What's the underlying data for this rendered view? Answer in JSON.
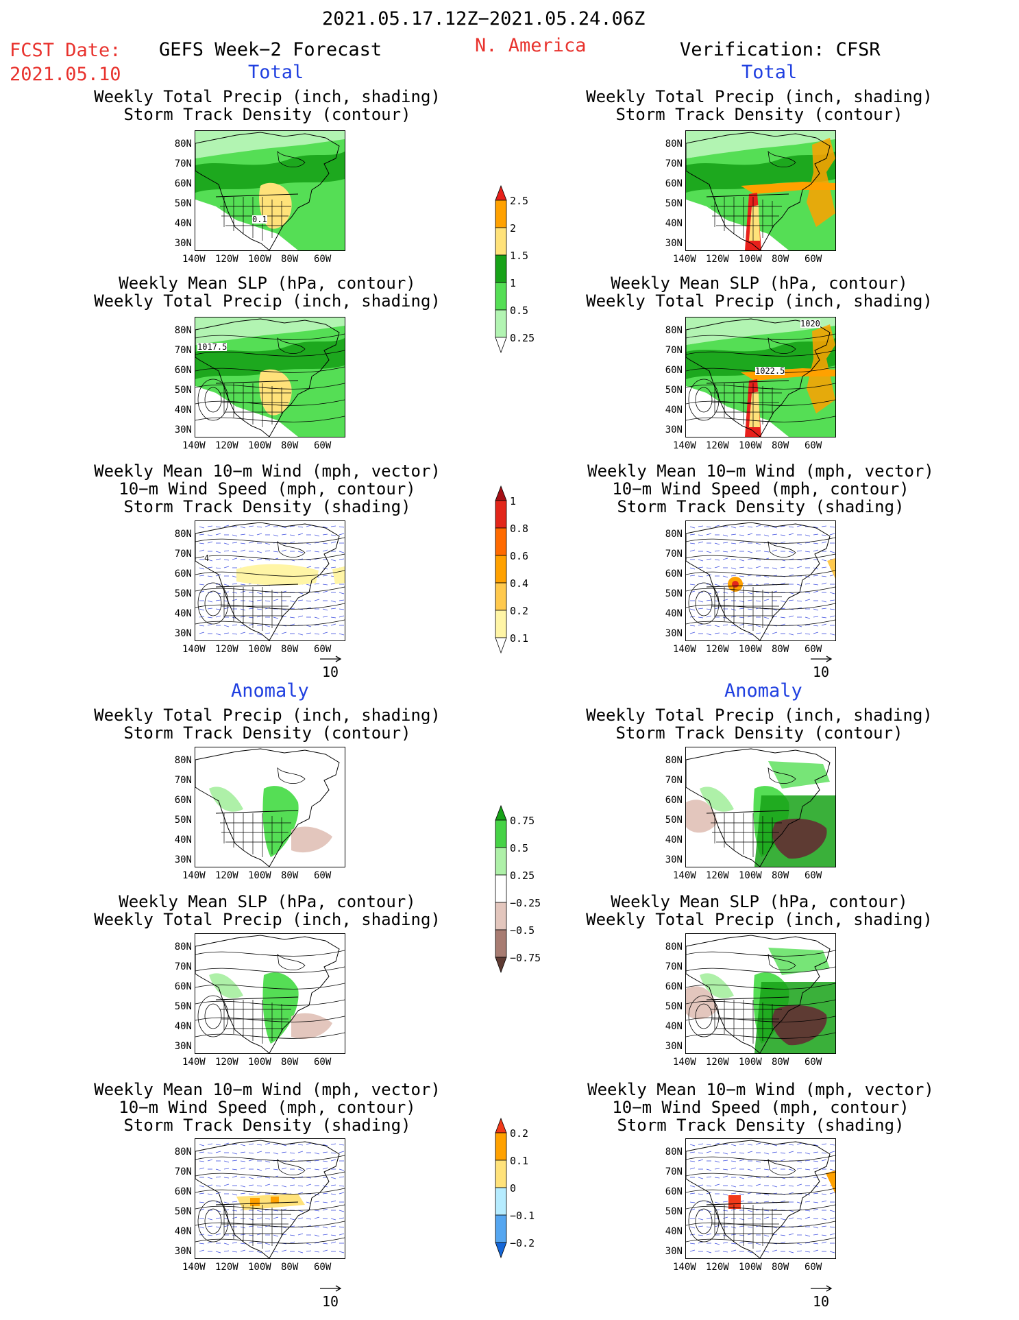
{
  "header": {
    "period": "2021.05.17.12Z−2021.05.24.06Z",
    "fcst_label": "FCST Date:",
    "fcst_date": "2021.05.10",
    "left_title": "GEFS Week−2 Forecast",
    "region": "N. America",
    "right_title": "Verification: CFSR"
  },
  "sections": {
    "total": "Total",
    "anomaly": "Anomaly"
  },
  "titles": {
    "precip_storm": "Weekly Total Precip (inch, shading)\nStorm Track Density (contour)",
    "slp_precip": "Weekly Mean SLP (hPa, contour)\nWeekly Total Precip (inch, shading)",
    "wind_storm": "Weekly Mean 10−m Wind (mph, vector)\n10−m Wind Speed (mph, contour)\nStorm Track Density (shading)"
  },
  "axes": {
    "lat": [
      "80N",
      "70N",
      "60N",
      "50N",
      "40N",
      "30N"
    ],
    "lon": [
      "140W",
      "120W",
      "100W",
      "80W",
      "60W"
    ]
  },
  "map_labels": {
    "f_tot_precip": "0.1",
    "f_tot_slp": "1017.5",
    "v_tot_slp_a": "1020",
    "v_tot_slp_b": "1022.5",
    "f_tot_wind": "4"
  },
  "vector_ref": "10",
  "colorbars": {
    "precip_total": {
      "levels": [
        "2.5",
        "2",
        "1.5",
        "1",
        "0.5",
        "0.25"
      ],
      "colors": [
        "#e8201b",
        "#ffa100",
        "#ffe27a",
        "#17a218",
        "#55de55",
        "#b2f4b2"
      ]
    },
    "storm_total": {
      "levels": [
        "1",
        "0.8",
        "0.6",
        "0.4",
        "0.2",
        "0.1"
      ],
      "colors": [
        "#a50f15",
        "#e2261a",
        "#ff6a00",
        "#ffa100",
        "#ffc94d",
        "#fff5a6"
      ]
    },
    "precip_anom": {
      "levels": [
        "0.75",
        "0.5",
        "0.25",
        "−0.25",
        "−0.5",
        "−0.75"
      ],
      "colors": [
        "#17a218",
        "#46d246",
        "#aef0a8",
        "#ffffff",
        "#e3c6bd",
        "#a87c72",
        "#5e3b33"
      ]
    },
    "storm_anom": {
      "levels": [
        "0.2",
        "0.1",
        "0",
        "−0.1",
        "−0.2"
      ],
      "colors": [
        "#f23a1a",
        "#ffa100",
        "#ffe27a",
        "#b6ecff",
        "#55a6f0",
        "#1466d8"
      ]
    }
  }
}
